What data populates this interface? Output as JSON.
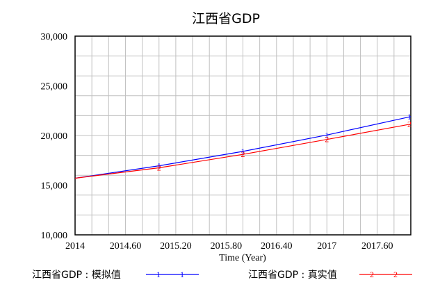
{
  "chart_data": {
    "type": "line",
    "title": "江西省GDP",
    "xlabel": "Time (Year)",
    "ylabel": "",
    "xlim": [
      2014,
      2018
    ],
    "ylim": [
      10000,
      30000
    ],
    "x_ticks": [
      2014,
      2014.6,
      2015.2,
      2015.8,
      2016.4,
      2017,
      2017.6
    ],
    "x_tick_labels": [
      "2014",
      "2014.60",
      "2015.20",
      "2015.80",
      "2016.40",
      "2017",
      "2017.60"
    ],
    "y_ticks": [
      10000,
      15000,
      20000,
      25000,
      30000
    ],
    "y_tick_labels": [
      "10,000",
      "15,000",
      "20,000",
      "25,000",
      "30,000"
    ],
    "grid": true,
    "legend_position": "bottom",
    "series": [
      {
        "name": "江西省GDP : 模拟值",
        "marker_label": "1",
        "color": "#0000ff",
        "x": [
          2014,
          2015,
          2016,
          2017,
          2018
        ],
        "y": [
          15700,
          16950,
          18400,
          20050,
          21900
        ],
        "marker_x": [
          2015,
          2016,
          2017,
          2018
        ]
      },
      {
        "name": "江西省GDP : 真实值",
        "marker_label": "2",
        "color": "#ff0000",
        "x": [
          2014,
          2015,
          2016,
          2017,
          2018
        ],
        "y": [
          15700,
          16750,
          18100,
          19600,
          21150
        ],
        "marker_x": [
          2015,
          2016,
          2017,
          2018
        ]
      }
    ]
  }
}
